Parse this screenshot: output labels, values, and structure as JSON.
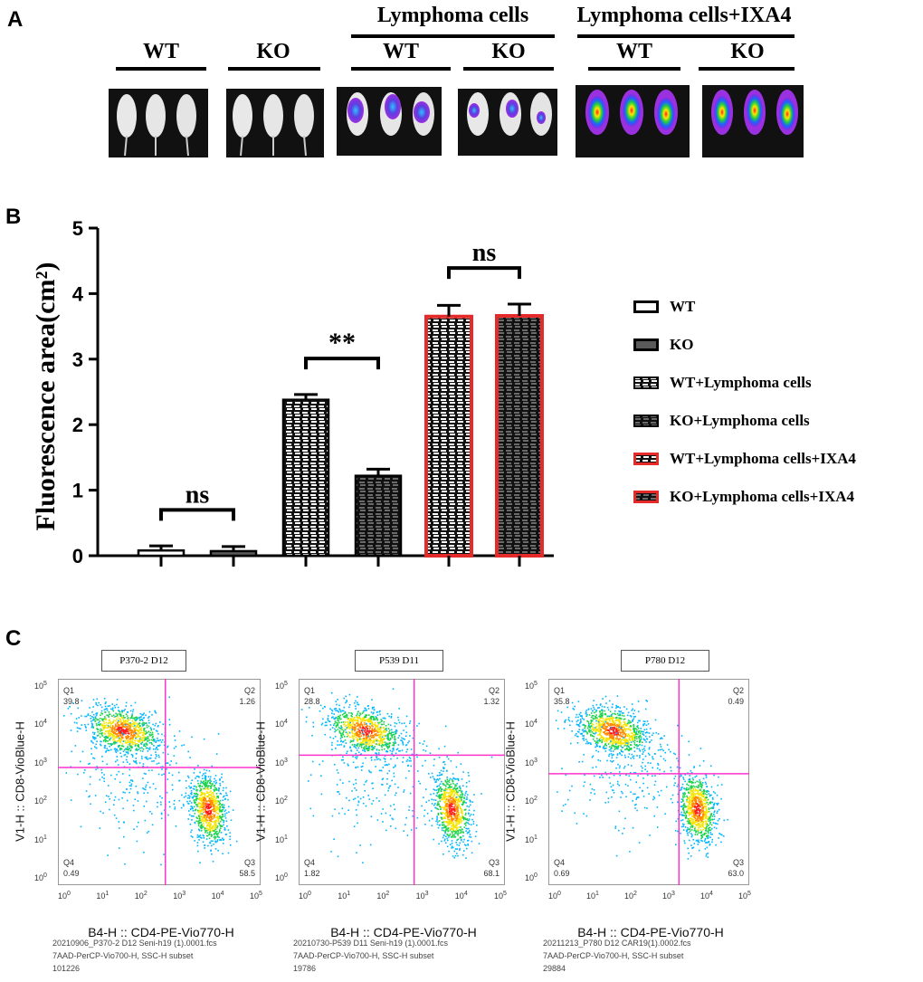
{
  "panel_a": {
    "label": "A",
    "top_headers": [
      "Lymphoma cells",
      "Lymphoma cells+IXA4"
    ],
    "groups": [
      "WT",
      "KO",
      "WT",
      "KO",
      "WT",
      "KO"
    ],
    "images": [
      "wt-control-mice-image",
      "ko-control-mice-image",
      "wt-lymphoma-mice-image",
      "ko-lymphoma-mice-image",
      "wt-lymphoma-ixa4-mice-image",
      "ko-lymphoma-ixa4-mice-image"
    ]
  },
  "panel_b": {
    "label": "B"
  },
  "chart_data": {
    "type": "bar",
    "title": "",
    "xlabel": "",
    "ylabel": "Fluorescence area(cm²)",
    "ylim": [
      0,
      5
    ],
    "yticks": [
      "0",
      "1",
      "2",
      "3",
      "4",
      "5"
    ],
    "categories": [
      "WT",
      "KO",
      "WT+Lymphoma cells",
      "KO+Lymphoma cells",
      "WT+Lymphoma cells+IXA4",
      "KO+Lymphoma cells+IXA4"
    ],
    "values": [
      0.08,
      0.07,
      2.38,
      1.22,
      3.65,
      3.66
    ],
    "errors": [
      0.07,
      0.07,
      0.08,
      0.1,
      0.17,
      0.18
    ],
    "significance": [
      {
        "pair": [
          0,
          1
        ],
        "label": "ns"
      },
      {
        "pair": [
          2,
          3
        ],
        "label": "**"
      },
      {
        "pair": [
          4,
          5
        ],
        "label": "ns"
      }
    ],
    "legend_position": "right",
    "colors": {
      "wt_fill": "#ffffff",
      "ko_fill": "#5a5a5a",
      "lymph_fill": "#111111",
      "ixa4_border": "#e52a2a",
      "bar_border": "#000000"
    }
  },
  "panel_c": {
    "label": "C",
    "plots": [
      {
        "title": "P370-2 D12",
        "q1": "Q1",
        "q1_val": "39.8",
        "q2": "Q2",
        "q2_val": "1.26",
        "q3": "Q3",
        "q3_val": "58.5",
        "q4": "Q4",
        "q4_val": "0.49",
        "x_label": "B4-H :: CD4-PE-Vio770-H",
        "y_label": "V1-H :: CD8-VioBlue-H",
        "footer1": "20210906_P370-2 D12  Seni-h19 (1).0001.fcs",
        "footer2": "7AAD-PerCP-Vio700-H, SSC-H subset",
        "footer3": "101226"
      },
      {
        "title": "P539 D11",
        "q1": "Q1",
        "q1_val": "28.8",
        "q2": "Q2",
        "q2_val": "1.32",
        "q3": "Q3",
        "q3_val": "68.1",
        "q4": "Q4",
        "q4_val": "1.82",
        "x_label": "B4-H :: CD4-PE-Vio770-H",
        "y_label": "V1-H :: CD8-VioBlue-H",
        "footer1": "20210730-P539 D11 Seni-h19 (1).0001.fcs",
        "footer2": "7AAD-PerCP-Vio700-H, SSC-H subset",
        "footer3": "19786"
      },
      {
        "title": "P780 D12",
        "q1": "Q1",
        "q1_val": "35.8",
        "q2": "Q2",
        "q2_val": "0.49",
        "q3": "Q3",
        "q3_val": "63.0",
        "q4": "Q4",
        "q4_val": "0.69",
        "x_label": "B4-H :: CD4-PE-Vio770-H",
        "y_label": "V1-H :: CD8-VioBlue-H",
        "footer1": "20211213_P780 D12 CAR19(1).0002.fcs",
        "footer2": "7AAD-PerCP-Vio700-H, SSC-H subset",
        "footer3": "29884"
      }
    ],
    "tick_labels": [
      "0",
      "1",
      "2",
      "3",
      "4",
      "5"
    ]
  }
}
